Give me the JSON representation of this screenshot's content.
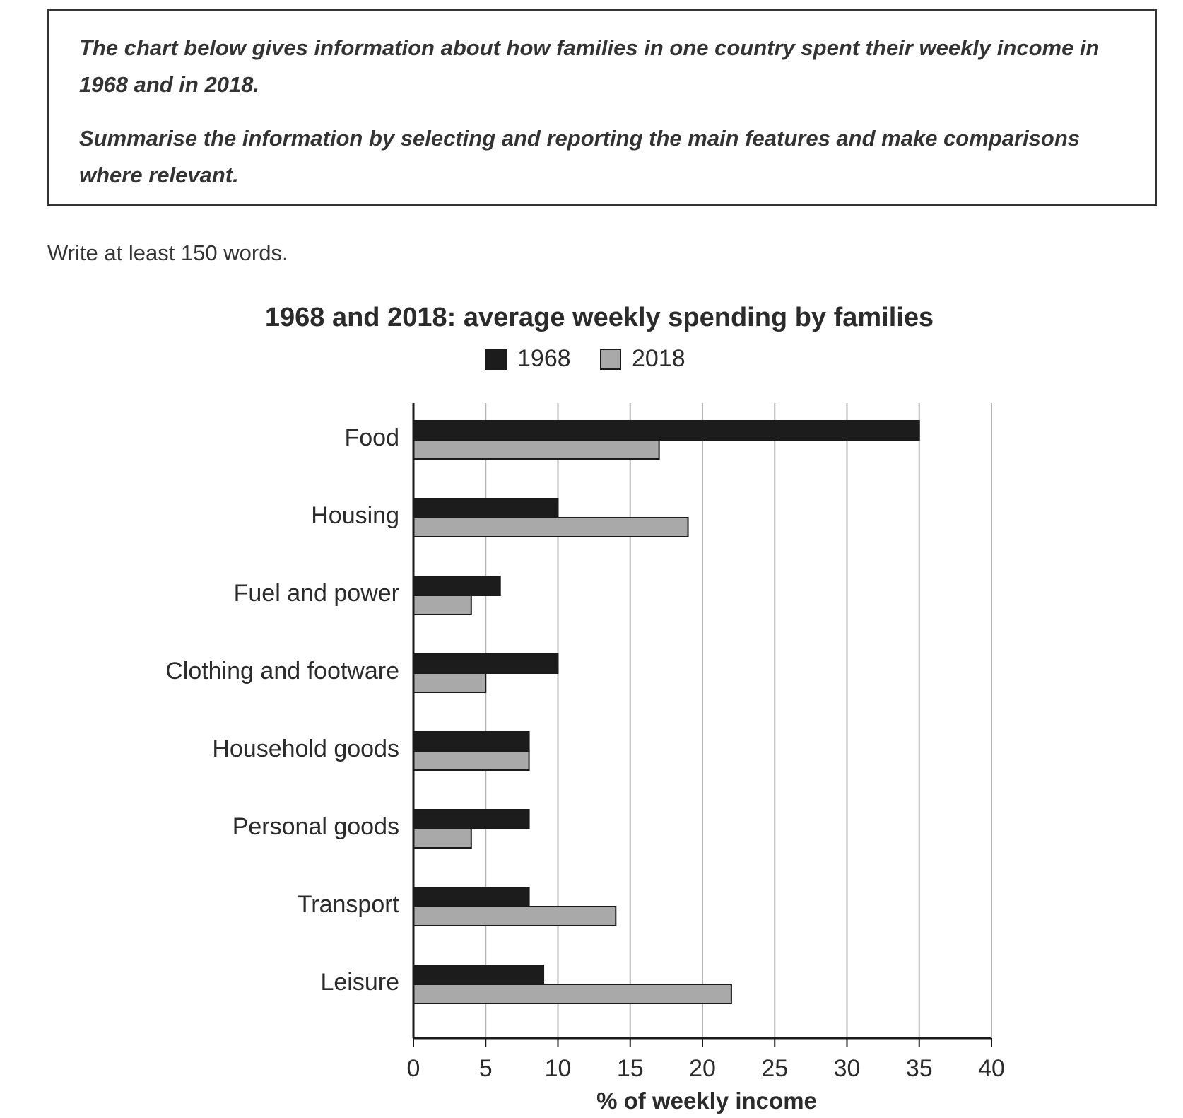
{
  "task": {
    "prompt_line": "The chart below gives information about how families in one country spent their weekly income in 1968 and in 2018.",
    "summary_line": "Summarise the information by selecting and reporting the main features and make comparisons where relevant."
  },
  "instruction": "Write at least 150 words.",
  "chart_data": {
    "type": "bar",
    "orientation": "horizontal",
    "title": "1968 and 2018: average weekly spending by families",
    "xlabel": "% of weekly income",
    "ylabel": "",
    "categories": [
      "Food",
      "Housing",
      "Fuel and power",
      "Clothing and footware",
      "Household goods",
      "Personal goods",
      "Transport",
      "Leisure"
    ],
    "series": [
      {
        "name": "1968",
        "color": "#1c1c1c",
        "values": [
          35,
          10,
          6,
          10,
          8,
          8,
          8,
          9
        ]
      },
      {
        "name": "2018",
        "color": "#a9a9a9",
        "values": [
          17,
          19,
          4,
          5,
          8,
          4,
          14,
          22
        ]
      }
    ],
    "xlim": [
      0,
      40
    ],
    "xticks": [
      "0",
      "5",
      "10",
      "15",
      "20",
      "25",
      "30",
      "35",
      "40"
    ],
    "grid": true,
    "legend_position": "top-center"
  }
}
